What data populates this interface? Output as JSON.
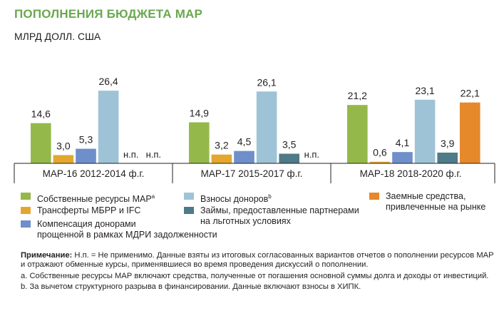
{
  "title": "ПОПОЛНЕНИЯ БЮДЖЕТА МАР",
  "unit_label": "МЛРД ДОЛЛ. США",
  "colors": {
    "title": "#6aa84f",
    "own": "#95b84a",
    "ibrd": "#e3a72f",
    "comp": "#6e8fc9",
    "donor": "#9fc3d6",
    "loans": "#4f7a87",
    "market": "#e5892b"
  },
  "chart_data": {
    "type": "bar",
    "categories": [
      "МАР-16 2012-2014 ф.г.",
      "МАР-17 2015-2017 ф.г.",
      "МАР-18 2018-2020 ф.г."
    ],
    "ylim": [
      0,
      30
    ],
    "series": [
      {
        "name": "Собственные ресурсы МАР",
        "sup": "a",
        "color_key": "own",
        "values": [
          14.6,
          14.9,
          21.2
        ],
        "labels": [
          "14,6",
          "14,9",
          "21,2"
        ]
      },
      {
        "name": "Трансферты МБРР и IFC",
        "color_key": "ibrd",
        "values": [
          3.0,
          3.2,
          0.6
        ],
        "labels": [
          "3,0",
          "3,2",
          "0,6"
        ]
      },
      {
        "name": "Компенсация донорами прощенной в рамках МДРИ задолженности",
        "color_key": "comp",
        "values": [
          5.3,
          4.5,
          4.1
        ],
        "labels": [
          "5,3",
          "4,5",
          "4,1"
        ]
      },
      {
        "name": "Взносы доноров",
        "sup": "b",
        "color_key": "donor",
        "values": [
          26.4,
          26.1,
          23.1
        ],
        "labels": [
          "26,4",
          "26,1",
          "23,1"
        ]
      },
      {
        "name": "Займы, предоставленные партнерами на льготных условиях",
        "color_key": "loans",
        "values": [
          null,
          3.5,
          3.9
        ],
        "labels": [
          "н.п.",
          "3,5",
          "3,9"
        ]
      },
      {
        "name": "Заемные средства, привлеченные на рынке",
        "color_key": "market",
        "values": [
          null,
          null,
          22.1
        ],
        "labels": [
          "н.п.",
          "н.п.",
          "22,1"
        ]
      }
    ]
  },
  "legend": {
    "own": "Собственные ресурсы МАР",
    "own_sup": "a",
    "ibrd": "Трансферты МБРР и IFC",
    "comp_line1": "Компенсация донорами",
    "comp_line2": "прощенной в рамках МДРИ задолженности",
    "donor": "Взносы доноров",
    "donor_sup": "b",
    "loans_line1": "Займы, предоставленные партнерами",
    "loans_line2": "на льготных условиях",
    "market_line1": "Заемные средства,",
    "market_line2": "привлеченные на рынке"
  },
  "notes": {
    "note_label": "Примечание:",
    "note_text": " Н.п. = Не применимо. Данные взяты из итоговых согласованных вариантов отчетов о пополнении ресурсов МАР и отражают обменные курсы, применявшиеся во время проведения дискуссий о пополнении.",
    "a": "a. Собственные ресурсы МАР включают средства, полученные от погашения основной суммы долга и доходы от инвестиций.",
    "b": "b. За вычетом структурного разрыва в финансировании. Данные включают взносы в ХИПК."
  }
}
